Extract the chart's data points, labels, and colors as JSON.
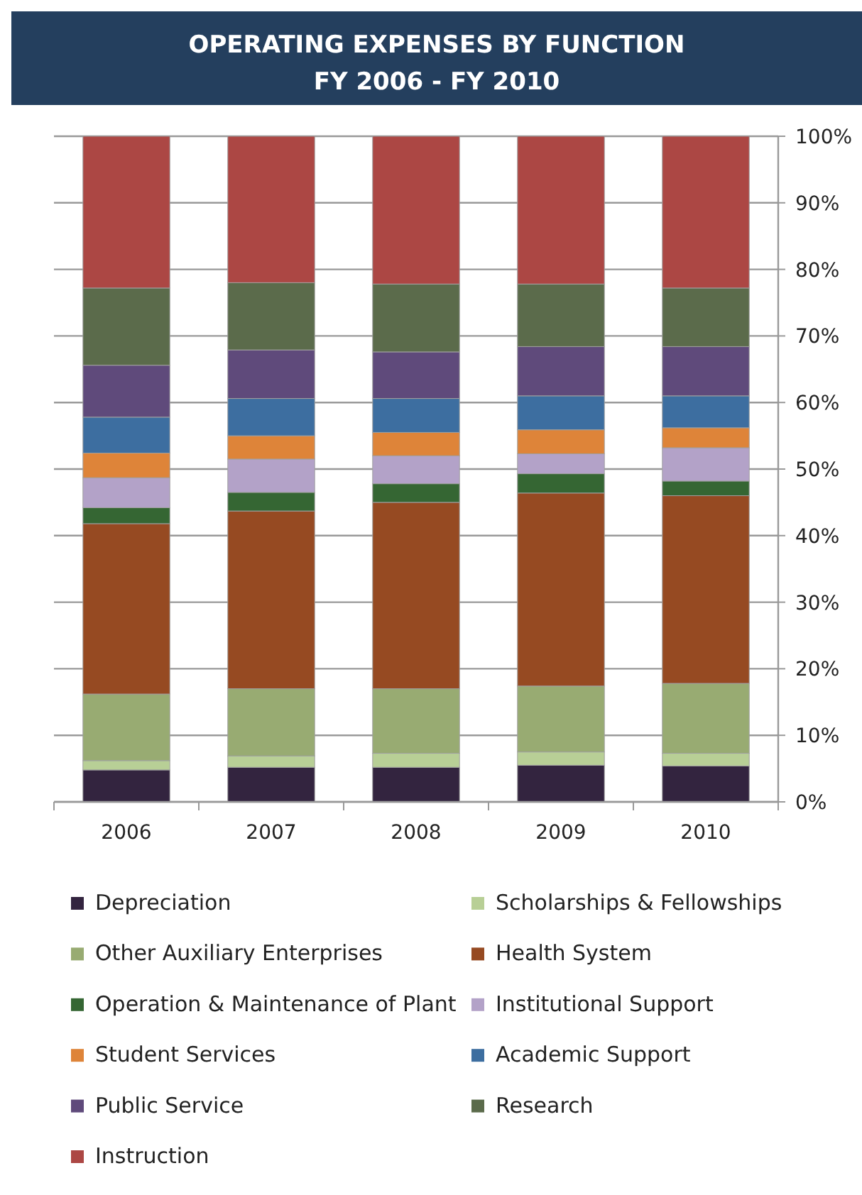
{
  "chart_data": {
    "type": "bar",
    "title": "OPERATING EXPENSES BY FUNCTION",
    "subtitle": "FY 2006 - FY 2010",
    "categories": [
      "2006",
      "2007",
      "2008",
      "2009",
      "2010"
    ],
    "stacked": true,
    "series": [
      {
        "name": "Depreciation",
        "color": "#33243f",
        "values": [
          4.8,
          5.2,
          5.2,
          5.5,
          5.4
        ]
      },
      {
        "name": "Scholarships & Fellowships",
        "color": "#b8cf96",
        "values": [
          1.4,
          1.7,
          2.1,
          2.0,
          1.9
        ]
      },
      {
        "name": "Other Auxiliary Enterprises",
        "color": "#98ab72",
        "values": [
          10.0,
          10.1,
          9.7,
          9.9,
          10.5
        ]
      },
      {
        "name": "Health System",
        "color": "#964a22",
        "values": [
          25.6,
          26.7,
          28.0,
          29.0,
          28.2
        ]
      },
      {
        "name": "Operation & Maintenance of Plant",
        "color": "#356633",
        "values": [
          2.4,
          2.8,
          2.8,
          2.9,
          2.2
        ]
      },
      {
        "name": "Institutional Support",
        "color": "#b3a2c8",
        "values": [
          4.5,
          5.0,
          4.2,
          3.0,
          5.0
        ]
      },
      {
        "name": "Student Services",
        "color": "#de8439",
        "values": [
          3.7,
          3.5,
          3.5,
          3.6,
          3.0
        ]
      },
      {
        "name": "Academic Support",
        "color": "#3d6ea0",
        "values": [
          5.4,
          5.6,
          5.1,
          5.1,
          4.8
        ]
      },
      {
        "name": "Public Service",
        "color": "#5f4a7b",
        "values": [
          7.8,
          7.3,
          7.0,
          7.4,
          7.4
        ]
      },
      {
        "name": "Research",
        "color": "#5b6b4b",
        "values": [
          11.6,
          10.1,
          10.2,
          9.4,
          8.8
        ]
      },
      {
        "name": "Instruction",
        "color": "#ac4744",
        "values": [
          22.8,
          22.0,
          22.2,
          22.2,
          22.8
        ]
      }
    ],
    "ylim": [
      0,
      100
    ],
    "yticks": [
      {
        "value": 0,
        "label": "0%"
      },
      {
        "value": 10,
        "label": "10%"
      },
      {
        "value": 20,
        "label": "20%"
      },
      {
        "value": 30,
        "label": "30%"
      },
      {
        "value": 40,
        "label": "40%"
      },
      {
        "value": 50,
        "label": "50%"
      },
      {
        "value": 60,
        "label": "60%"
      },
      {
        "value": 70,
        "label": "70%"
      },
      {
        "value": 80,
        "label": "80%"
      },
      {
        "value": 90,
        "label": "90%"
      },
      {
        "value": 100,
        "label": "100%"
      }
    ],
    "grid": "y",
    "legend": "bottom"
  }
}
